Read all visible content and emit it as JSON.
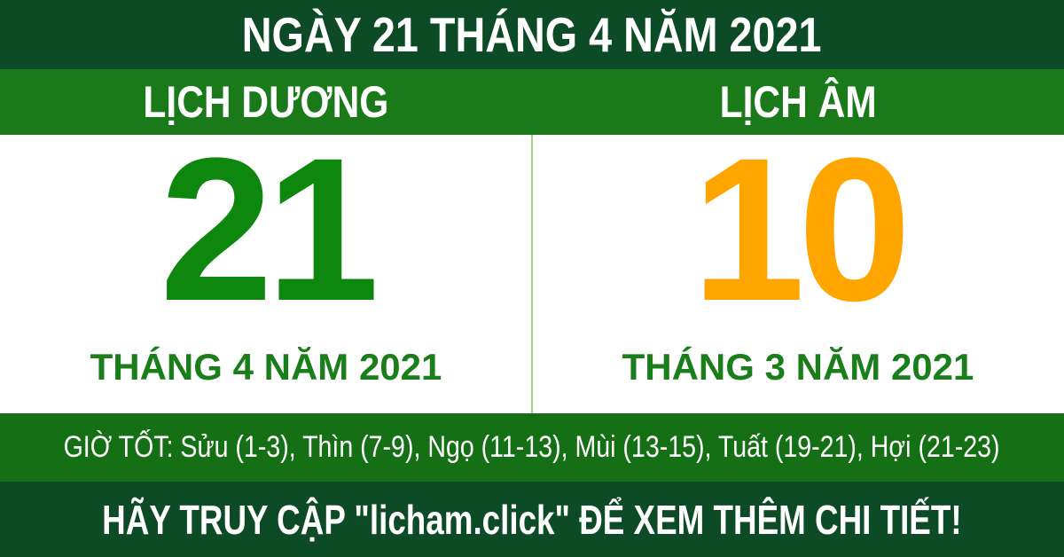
{
  "colors": {
    "dark_green": "#0D4B26",
    "header_green": "#1A7A1A",
    "hours_bar_green": "#156F15",
    "solar_day_green": "#0E870E",
    "lunar_day_orange": "#FFA500",
    "month_label_green": "#1A7E1A",
    "divider_light_green": "#A6D380",
    "text_white": "#FFFFFF"
  },
  "title_bar": {
    "text": "NGÀY 21 THÁNG 4 NĂM 2021"
  },
  "calendar_headers": {
    "solar_label": "LỊCH DƯƠNG",
    "lunar_label": "LỊCH ÂM"
  },
  "solar_panel": {
    "day": "21",
    "month_year": "THÁNG 4 NĂM 2021"
  },
  "lunar_panel": {
    "day": "10",
    "month_year": "THÁNG 3 NĂM 2021"
  },
  "good_hours_bar": {
    "label": "GIỜ TỐT:",
    "hours": [
      "Sửu (1-3)",
      "Thìn (7-9)",
      "Ngọ (11-13)",
      "Mùi (13-15)",
      "Tuất (19-21)",
      "Hợi (21-23)"
    ],
    "text": "GIỜ TỐT: Sửu (1-3), Thìn (7-9), Ngọ (11-13), Mùi (13-15), Tuất (19-21), Hợi (21-23)"
  },
  "footer_bar": {
    "text": "HÃY TRUY CẬP \"licham.click\" ĐỂ XEM THÊM CHI TIẾT!"
  }
}
